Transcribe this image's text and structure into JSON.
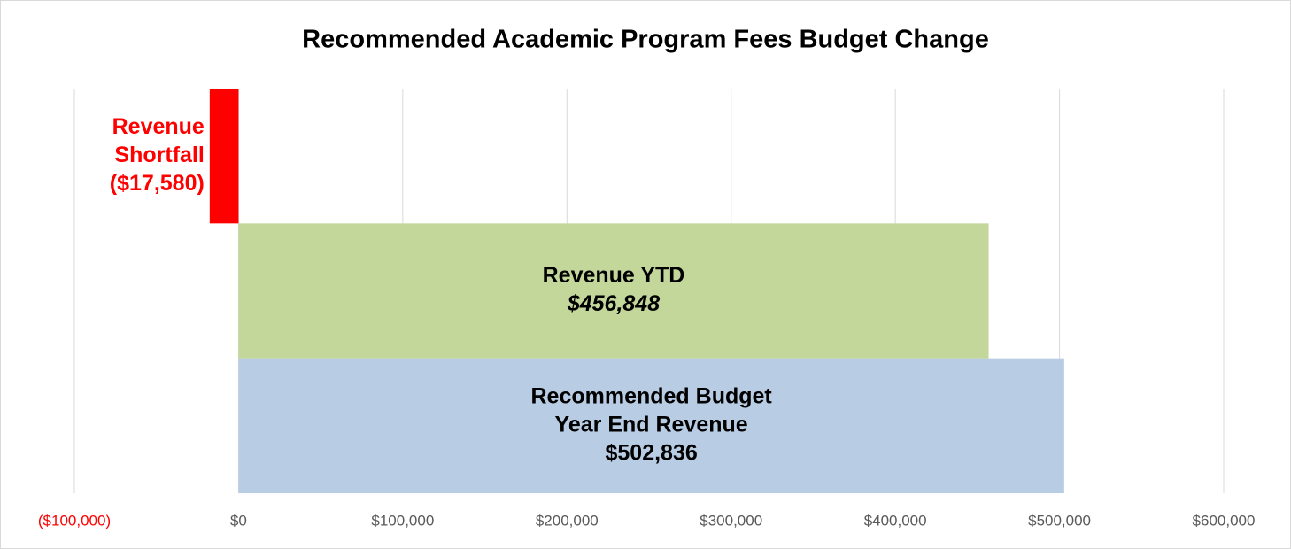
{
  "chart_data": {
    "type": "hbar",
    "title": "Recommended Academic Program Fees Budget Change",
    "categories": [
      [
        "Revenue",
        "Shortfall"
      ],
      [
        "Revenue YTD"
      ],
      [
        "Recommended Budget",
        "Year End Revenue"
      ]
    ],
    "values": [
      -17580,
      456848,
      502836
    ],
    "value_labels": [
      "($17,580)",
      "$456,848",
      "$502,836"
    ],
    "colors": [
      "#ff0000",
      "#c4d79b",
      "#b8cce4"
    ],
    "negative_color": "#ff0000",
    "xlim": [
      -100000,
      600000
    ],
    "xticks": [
      {
        "value": -100000,
        "label": "($100,000)"
      },
      {
        "value": 0,
        "label": "$0"
      },
      {
        "value": 100000,
        "label": "$100,000"
      },
      {
        "value": 200000,
        "label": "$200,000"
      },
      {
        "value": 300000,
        "label": "$300,000"
      },
      {
        "value": 400000,
        "label": "$400,000"
      },
      {
        "value": 500000,
        "label": "$500,000"
      },
      {
        "value": 600000,
        "label": "$600,000"
      }
    ],
    "grid": true
  }
}
